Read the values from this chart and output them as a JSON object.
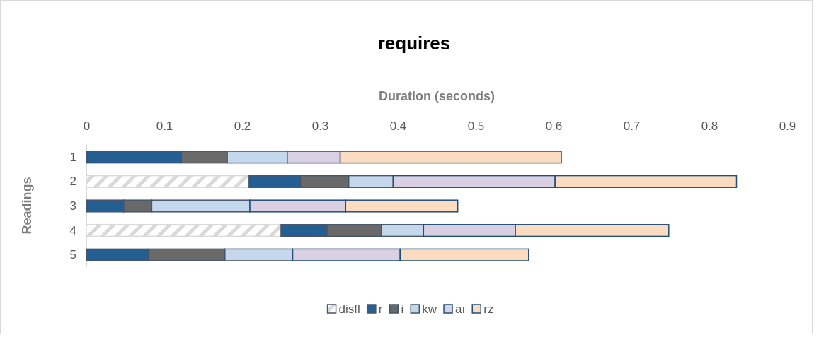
{
  "chart_data": {
    "type": "bar",
    "orientation": "horizontal",
    "stacked": true,
    "title": "requires",
    "xlabel": "Duration (seconds)",
    "ylabel": "Readings",
    "categories": [
      "1",
      "2",
      "3",
      "4",
      "5"
    ],
    "xlim": [
      0,
      0.9
    ],
    "xticks": [
      0,
      0.1,
      0.2,
      0.3,
      0.4,
      0.5,
      0.6,
      0.7,
      0.8,
      0.9
    ],
    "grid": false,
    "legend": "bottom",
    "series": [
      {
        "name": "disfl",
        "color": "#d9d9d9",
        "values": [
          0,
          0.209,
          0,
          0.25,
          0
        ]
      },
      {
        "name": "r",
        "color": "#255e91",
        "values": [
          0.122,
          0.066,
          0.048,
          0.059,
          0.08
        ]
      },
      {
        "name": "i",
        "color": "#696969",
        "values": [
          0.059,
          0.062,
          0.036,
          0.07,
          0.098
        ]
      },
      {
        "name": "kw",
        "color": "#c5d7ec",
        "values": [
          0.077,
          0.057,
          0.126,
          0.054,
          0.087
        ]
      },
      {
        "name": "aı",
        "color": "#d9d0e3",
        "values": [
          0.068,
          0.208,
          0.123,
          0.118,
          0.138
        ]
      },
      {
        "name": "rz",
        "color": "#fcdcc0",
        "values": [
          0.284,
          0.233,
          0.144,
          0.197,
          0.165
        ]
      }
    ]
  }
}
